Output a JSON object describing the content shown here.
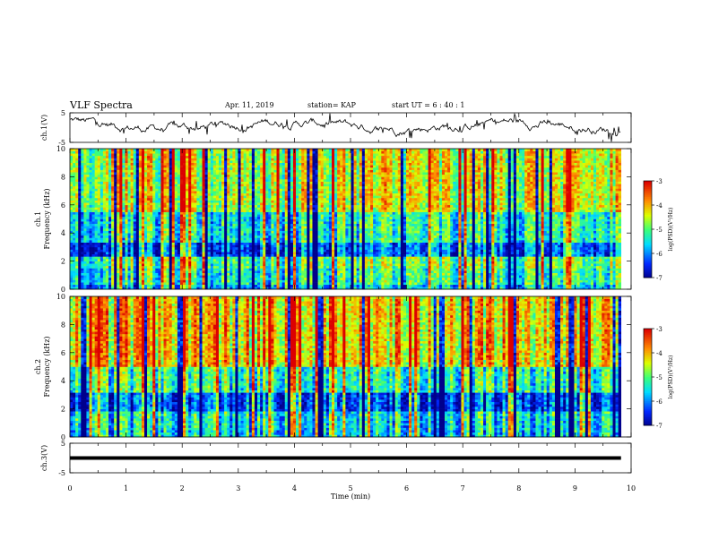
{
  "title": "VLF Spectra",
  "date": "Apr. 11, 2019",
  "station": "station= KAP",
  "start_ut": "start  UT =  6 : 40 : 1",
  "chart_data": [
    {
      "type": "line",
      "name": "ch1-waveform",
      "ylabel": "ch.1(V)",
      "ylim": [
        -5,
        5
      ],
      "yticks": [
        "5",
        "-5"
      ],
      "xlim": [
        0,
        10
      ]
    },
    {
      "type": "heatmap",
      "name": "ch1-spectrogram",
      "ylabel": "ch.1\nFrequency (kHz)",
      "ylim": [
        0,
        10
      ],
      "yticks": [
        "0",
        "2",
        "4",
        "6",
        "8",
        "10"
      ],
      "xlim": [
        0,
        10
      ],
      "colorbar": {
        "label": "log(PSD)(V²/Hz)",
        "range": [
          -7,
          -3
        ],
        "ticks": [
          "-3",
          "-4",
          "-5",
          "-6",
          "-7"
        ]
      }
    },
    {
      "type": "heatmap",
      "name": "ch2-spectrogram",
      "ylabel": "ch.2\nFrequency (kHz)",
      "ylim": [
        0,
        10
      ],
      "yticks": [
        "0",
        "2",
        "4",
        "6",
        "8",
        "10"
      ],
      "xlim": [
        0,
        10
      ],
      "colorbar": {
        "label": "log(PSD)(V²/Hz)",
        "range": [
          -7,
          -3
        ],
        "ticks": [
          "-3",
          "-4",
          "-5",
          "-6",
          "-7"
        ]
      }
    },
    {
      "type": "line",
      "name": "ch3-waveform",
      "ylabel": "ch.3(V)",
      "ylim": [
        -5,
        5
      ],
      "yticks": [
        "5",
        "-5"
      ],
      "xlim": [
        0,
        10
      ],
      "xlabel": "Time (min)",
      "xticks": [
        "0",
        "1",
        "2",
        "3",
        "4",
        "5",
        "6",
        "7",
        "8",
        "9",
        "10"
      ]
    }
  ]
}
